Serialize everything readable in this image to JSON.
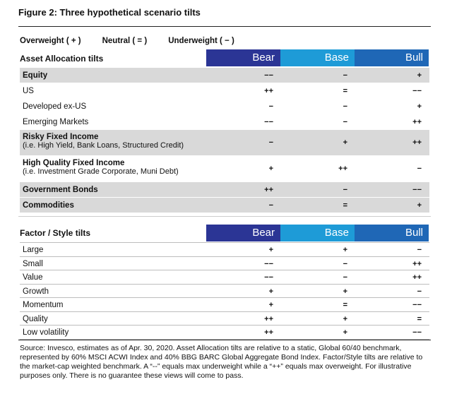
{
  "figure_title": "Figure 2: Three hypothetical scenario tilts",
  "legend": [
    "Overweight ( + )",
    "Neutral ( = )",
    "Underweight ( − )"
  ],
  "colors": {
    "bear": "#2b3595",
    "base": "#1e9bd7",
    "bull": "#1f67b6",
    "shade": "#d9d9d9"
  },
  "scenarios": [
    "Bear",
    "Base",
    "Bull"
  ],
  "asset_table": {
    "label": "Asset Allocation tilts",
    "rows": [
      {
        "label": "Equity",
        "sub": "",
        "bold": true,
        "shade": true,
        "bear": "−−",
        "base": "−",
        "bull": "+"
      },
      {
        "label": "US",
        "sub": "",
        "bold": false,
        "shade": false,
        "bear": "++",
        "base": "=",
        "bull": "−−"
      },
      {
        "label": "Developed ex-US",
        "sub": "",
        "bold": false,
        "shade": false,
        "bear": "−",
        "base": "−",
        "bull": "+"
      },
      {
        "label": "Emerging Markets",
        "sub": "",
        "bold": false,
        "shade": false,
        "bear": "−−",
        "base": "−",
        "bull": "++"
      },
      {
        "label": "Risky Fixed Income",
        "sub": "(i.e. High Yield, Bank Loans, Structured Credit)",
        "bold": true,
        "shade": true,
        "bear": "−",
        "base": "+",
        "bull": "++"
      },
      {
        "label": "High Quality Fixed Income",
        "sub": "(i.e. Investment Grade Corporate, Muni Debt)",
        "bold": true,
        "shade": false,
        "bear": "+",
        "base": "++",
        "bull": "−"
      },
      {
        "label": "Government Bonds",
        "sub": "",
        "bold": true,
        "shade": true,
        "bear": "++",
        "base": "−",
        "bull": "−−"
      },
      {
        "label": "Commodities",
        "sub": "",
        "bold": true,
        "shade": true,
        "bear": "−",
        "base": "=",
        "bull": "+"
      }
    ]
  },
  "factor_table": {
    "label": "Factor / Style tilts",
    "rows": [
      {
        "label": "Large",
        "bear": "+",
        "base": "+",
        "bull": "−"
      },
      {
        "label": "Small",
        "bear": "−−",
        "base": "−",
        "bull": "++"
      },
      {
        "label": "Value",
        "bear": "−−",
        "base": "−",
        "bull": "++"
      },
      {
        "label": "Growth",
        "bear": "+",
        "base": "+",
        "bull": "−"
      },
      {
        "label": "Momentum",
        "bear": "+",
        "base": "=",
        "bull": "−−"
      },
      {
        "label": "Quality",
        "bear": "++",
        "base": "+",
        "bull": "="
      },
      {
        "label": "Low volatility",
        "bear": "++",
        "base": "+",
        "bull": "−−"
      }
    ]
  },
  "source_text": "Source: Invesco, estimates as of Apr. 30, 2020. Asset Allocation tilts are relative to a static, Global 60/40 benchmark, represented by 60% MSCI ACWI Index and 40% BBG BARC Global Aggregate Bond Index. Factor/Style tilts are relative to the market-cap weighted benchmark. A “--” equals max underweight while a “++” equals max overweight. For illustrative purposes only. There is no guarantee these views will come to pass."
}
